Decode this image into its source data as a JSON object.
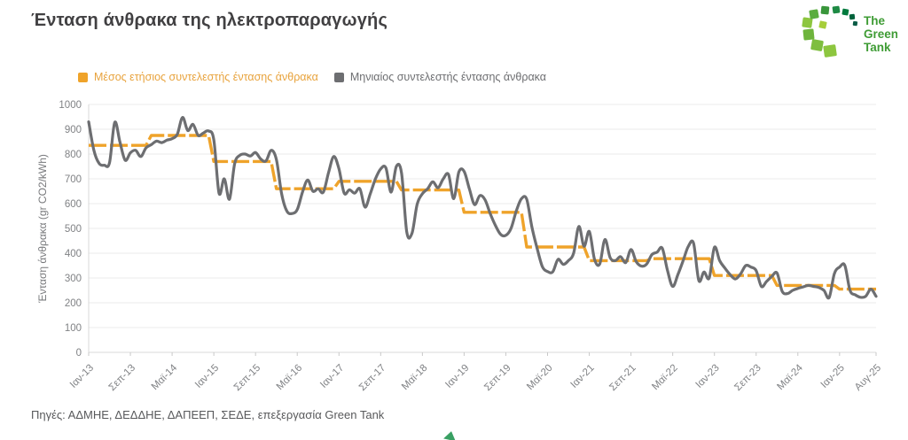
{
  "header": {
    "title": "Ένταση άνθρακα της ηλεκτροπαραγωγής"
  },
  "logo": {
    "lines": [
      "The",
      "Green",
      "Tank"
    ],
    "text_color": "#3F9C35"
  },
  "legend": {
    "items": [
      {
        "label": "Μέσος ετήσιος συντελεστής έντασης άνθρακα",
        "color": "#EFA32A",
        "text_color": "#E8A33D"
      },
      {
        "label": "Μηνιαίος συντελεστής έντασης άνθρακα",
        "color": "#6D6E71",
        "text_color": "#6D6E71"
      }
    ]
  },
  "chart_data": {
    "type": "line",
    "title": "Ένταση άνθρακα της ηλεκτροπαραγωγής",
    "xlabel": "",
    "ylabel": "Ένταση άνθρακα (gr CO2/kWh)",
    "ylim": [
      0,
      1000
    ],
    "ytick_step": 100,
    "grid": true,
    "legend_position": "top-left",
    "x_start": "Ιαν-13",
    "x_end": "Αυγ-25",
    "xtick_labels": [
      "Ιαν-13",
      "Σεπ-13",
      "Μαϊ-14",
      "Ιαν-15",
      "Σεπ-15",
      "Μαϊ-16",
      "Ιαν-17",
      "Σεπ-17",
      "Μαϊ-18",
      "Ιαν-19",
      "Σεπ-19",
      "Μαϊ-20",
      "Ιαν-21",
      "Σεπ-21",
      "Μαϊ-22",
      "Ιαν-23",
      "Σεπ-23",
      "Μαϊ-24",
      "Ιαν-25",
      "Αυγ-25"
    ],
    "xtick_month_indices": [
      0,
      8,
      16,
      24,
      32,
      40,
      48,
      56,
      64,
      72,
      80,
      88,
      96,
      104,
      112,
      120,
      128,
      136,
      144,
      151
    ],
    "series": [
      {
        "name": "Μέσος ετήσιος συντελεστής έντασης άνθρακα",
        "type": "annual-step",
        "color": "#EFA32A",
        "years": [
          2013,
          2014,
          2015,
          2016,
          2017,
          2018,
          2019,
          2020,
          2021,
          2022,
          2023,
          2024,
          2025
        ],
        "values": [
          835,
          875,
          770,
          660,
          690,
          655,
          565,
          425,
          370,
          378,
          310,
          270,
          255
        ]
      },
      {
        "name": "Μηνιαίος συντελεστής έντασης άνθρακα",
        "type": "monthly",
        "color": "#6D6E71",
        "start": "Ιαν-13",
        "end": "Αυγ-25",
        "values": [
          930,
          815,
          762,
          755,
          765,
          928,
          848,
          775,
          805,
          815,
          790,
          825,
          838,
          852,
          846,
          856,
          862,
          880,
          948,
          895,
          920,
          875,
          885,
          893,
          858,
          642,
          700,
          618,
          762,
          795,
          800,
          792,
          806,
          780,
          772,
          815,
          778,
          640,
          570,
          560,
          576,
          646,
          695,
          650,
          660,
          646,
          725,
          790,
          740,
          642,
          656,
          642,
          660,
          586,
          640,
          700,
          740,
          744,
          646,
          750,
          724,
          486,
          480,
          598,
          640,
          660,
          688,
          664,
          700,
          718,
          620,
          728,
          730,
          660,
          596,
          632,
          616,
          560,
          512,
          476,
          472,
          500,
          570,
          620,
          618,
          505,
          420,
          346,
          326,
          325,
          375,
          355,
          370,
          400,
          508,
          428,
          488,
          376,
          356,
          455,
          382,
          370,
          386,
          362,
          415,
          366,
          348,
          356,
          394,
          404,
          420,
          330,
          266,
          314,
          370,
          428,
          440,
          290,
          324,
          300,
          424,
          370,
          340,
          314,
          296,
          316,
          350,
          344,
          330,
          266,
          286,
          306,
          320,
          246,
          237,
          250,
          258,
          264,
          270,
          266,
          262,
          250,
          221,
          318,
          344,
          351,
          250,
          232,
          222,
          226,
          255,
          226
        ]
      }
    ]
  },
  "footer": {
    "source": "Πηγές: ΑΔΜΗΕ, ΔΕΔΔΗΕ, ΔΑΠΕΕΠ, ΣΕΔΕ, επεξεργασία Green Tank"
  }
}
